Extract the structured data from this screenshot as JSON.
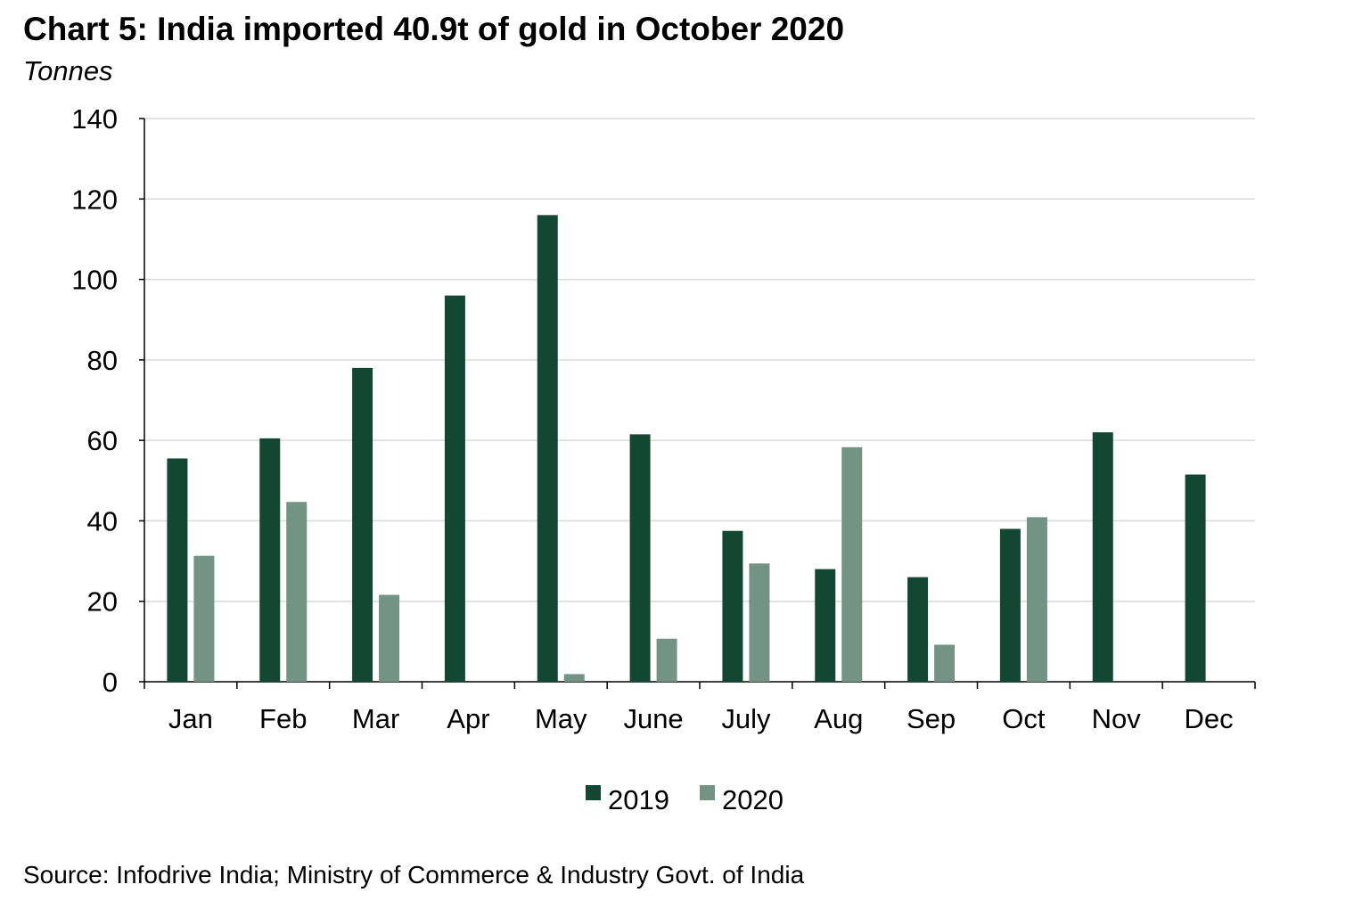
{
  "title": "Chart 5: India imported 40.9t of gold in October 2020",
  "unit_label": "Tonnes",
  "source": "Source: Infodrive India; Ministry of Commerce & Industry Govt. of India",
  "colors": {
    "series_2019": "#124734",
    "series_2020": "#739384",
    "grid": "#d9d9d9",
    "axis": "#000000"
  },
  "chart_data": {
    "type": "bar",
    "title": "Chart 5: India imported 40.9t of gold in October 2020",
    "ylabel": "Tonnes",
    "xlabel": "",
    "ylim": [
      0,
      140
    ],
    "yticks": [
      0,
      20,
      40,
      60,
      80,
      100,
      120,
      140
    ],
    "grid": true,
    "legend_position": "bottom",
    "categories": [
      "Jan",
      "Feb",
      "Mar",
      "Apr",
      "May",
      "June",
      "July",
      "Aug",
      "Sep",
      "Oct",
      "Nov",
      "Dec"
    ],
    "series": [
      {
        "name": "2019",
        "values": [
          55.5,
          60.5,
          78,
          96,
          116,
          61.5,
          37.5,
          28,
          26,
          38,
          62,
          51.5
        ]
      },
      {
        "name": "2020",
        "values": [
          31.3,
          44.7,
          21.6,
          null,
          1.9,
          10.7,
          29.4,
          58.3,
          9.2,
          40.9,
          null,
          null
        ]
      }
    ]
  }
}
